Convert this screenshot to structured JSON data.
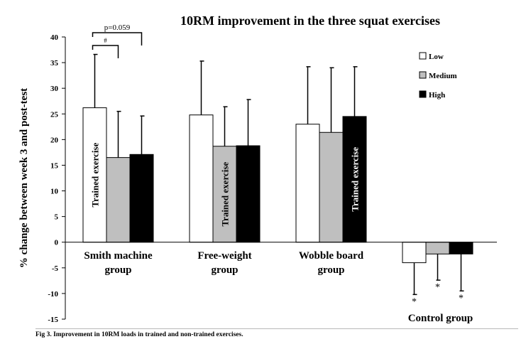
{
  "caption": "Fig 3. Improvement in 10RM loads in trained and non-trained exercises.",
  "chart_data": {
    "type": "bar",
    "title": "10RM improvement in the three squat exercises",
    "ylabel": "% change between week 3 and post-test",
    "xlabel": "",
    "ylim": [
      -15,
      40
    ],
    "yticks": [
      -15,
      -10,
      -5,
      0,
      5,
      10,
      15,
      20,
      25,
      30,
      35,
      40
    ],
    "grid": false,
    "legend_position": "right",
    "categories": [
      "Smith machine group",
      "Free-weight group",
      "Wobble board group",
      "Control group"
    ],
    "category_label_lines": [
      [
        "Smith machine",
        "group"
      ],
      [
        "Free-weight",
        "group"
      ],
      [
        "Wobble board",
        "group"
      ],
      [
        "Control group"
      ]
    ],
    "series": [
      {
        "name": "Low",
        "color": "#ffffff",
        "values": [
          26.2,
          24.8,
          23.0,
          -4.0
        ],
        "errors": [
          10.4,
          10.5,
          11.2,
          6.2
        ]
      },
      {
        "name": "Medium",
        "color": "#bfbfbf",
        "values": [
          16.5,
          18.7,
          21.4,
          -2.3
        ],
        "errors": [
          9.0,
          7.7,
          12.6,
          5.1
        ]
      },
      {
        "name": "High",
        "color": "#000000",
        "values": [
          17.1,
          18.8,
          24.5,
          -2.3
        ],
        "errors": [
          7.5,
          9.0,
          9.7,
          7.2
        ]
      }
    ],
    "trained_label": "Trained exercise",
    "trained_bars": [
      {
        "group": 0,
        "series": 0
      },
      {
        "group": 1,
        "series": 1
      },
      {
        "group": 2,
        "series": 2
      }
    ],
    "significance": [
      {
        "label": "#",
        "group": 0,
        "from": 0,
        "to": 1
      },
      {
        "label": "p=0.059",
        "group": 0,
        "from": 0,
        "to": 2
      }
    ],
    "asterisks": [
      {
        "group": 3,
        "series": 0,
        "label": "*"
      },
      {
        "group": 3,
        "series": 1,
        "label": "*"
      },
      {
        "group": 3,
        "series": 2,
        "label": "*"
      }
    ]
  }
}
